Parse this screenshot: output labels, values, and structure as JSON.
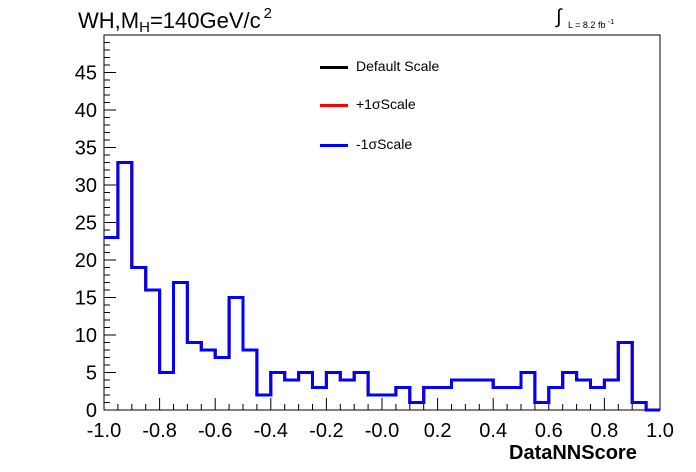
{
  "title": {
    "main": "WH,M",
    "sub": "H",
    "value": "=140GeV/c",
    "sup": "2"
  },
  "luminosity": {
    "integral": "∫",
    "text": "L = 8.2 fb",
    "sup": "-1"
  },
  "colors": {
    "default": "#000000",
    "plus": "#ff0000",
    "minus": "#0000ff"
  },
  "chart_data": {
    "type": "line",
    "style": "step-histogram",
    "xlabel": "DataNNScore",
    "ylabel": "",
    "xlim": [
      -1.0,
      1.0
    ],
    "ylim": [
      0,
      50
    ],
    "grid": false,
    "legend_position": "top-center",
    "xticks": [
      "-1.0",
      "-0.8",
      "-0.6",
      "-0.4",
      "-0.2",
      "-0.0",
      "0.2",
      "0.4",
      "0.6",
      "0.8",
      "1.0"
    ],
    "yticks": [
      "0",
      "5",
      "10",
      "15",
      "20",
      "25",
      "30",
      "35",
      "40",
      "45"
    ],
    "bin_edges": [
      -1.0,
      -0.95,
      -0.9,
      -0.85,
      -0.8,
      -0.75,
      -0.7,
      -0.65,
      -0.6,
      -0.55,
      -0.5,
      -0.45,
      -0.4,
      -0.35,
      -0.3,
      -0.25,
      -0.2,
      -0.15,
      -0.1,
      -0.05,
      0.0,
      0.05,
      0.1,
      0.15,
      0.2,
      0.25,
      0.3,
      0.35,
      0.4,
      0.45,
      0.5,
      0.55,
      0.6,
      0.65,
      0.7,
      0.75,
      0.8,
      0.85,
      0.9,
      0.95,
      1.0
    ],
    "series": [
      {
        "name": "Default Scale",
        "color": "#000000",
        "values": [
          23,
          33,
          19,
          16,
          5,
          17,
          9,
          8,
          7,
          15,
          8,
          2,
          5,
          4,
          5,
          3,
          5,
          4,
          5,
          2,
          2,
          3,
          1,
          3,
          3,
          4,
          4,
          4,
          3,
          3,
          5,
          1,
          3,
          5,
          4,
          3,
          4,
          9,
          1,
          0
        ]
      },
      {
        "name": "+1σScale",
        "color": "#ff0000",
        "values": [
          23,
          33,
          19,
          16,
          5,
          17,
          9,
          8,
          7,
          15,
          8,
          2,
          5,
          4,
          5,
          3,
          5,
          4,
          5,
          2,
          2,
          3,
          1,
          3,
          3,
          4,
          4,
          4,
          3,
          3,
          5,
          1,
          3,
          5,
          4,
          3,
          4,
          9,
          1,
          0
        ]
      },
      {
        "name": "-1σScale",
        "color": "#0000ff",
        "values": [
          23,
          33,
          19,
          16,
          5,
          17,
          9,
          8,
          7,
          15,
          8,
          2,
          5,
          4,
          5,
          3,
          5,
          4,
          5,
          2,
          2,
          3,
          1,
          3,
          3,
          4,
          4,
          4,
          3,
          3,
          5,
          1,
          3,
          5,
          4,
          3,
          4,
          9,
          1,
          0
        ]
      }
    ]
  }
}
